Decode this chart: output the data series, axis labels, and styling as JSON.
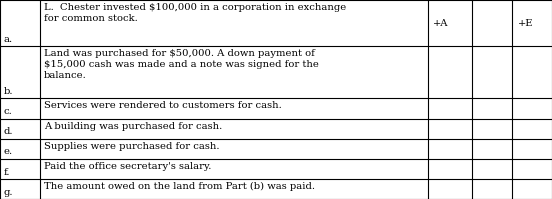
{
  "rows": [
    {
      "label": "a.",
      "text": "L.  Chester invested $100,000 in a corporation in exchange\nfor common stock.",
      "A": "+A",
      "L": "",
      "E": "+E"
    },
    {
      "label": "b.",
      "text": "Land was purchased for $50,000. A down payment of\n$15,000 cash was made and a note was signed for the\nbalance.",
      "A": "",
      "L": "",
      "E": ""
    },
    {
      "label": "c.",
      "text": "Services were rendered to customers for cash.",
      "A": "",
      "L": "",
      "E": ""
    },
    {
      "label": "d.",
      "text": "A building was purchased for cash.",
      "A": "",
      "L": "",
      "E": ""
    },
    {
      "label": "e.",
      "text": "Supplies were purchased for cash.",
      "A": "",
      "L": "",
      "E": ""
    },
    {
      "label": "f.",
      "text": "Paid the office secretary's salary.",
      "A": "",
      "L": "",
      "E": ""
    },
    {
      "label": "g.",
      "text": "The amount owed on the land from Part (b) was paid.",
      "A": "",
      "L": "",
      "E": ""
    }
  ],
  "bg_color": "#ffffff",
  "border_color": "#000000",
  "font_size": 7.2,
  "font_family": "DejaVu Serif",
  "row_heights_raw": [
    2.3,
    2.6,
    1.0,
    1.0,
    1.0,
    1.0,
    1.0
  ],
  "col_boundaries": [
    0.0,
    0.072,
    0.775,
    0.855,
    0.928,
    1.0
  ],
  "lw": 0.8
}
